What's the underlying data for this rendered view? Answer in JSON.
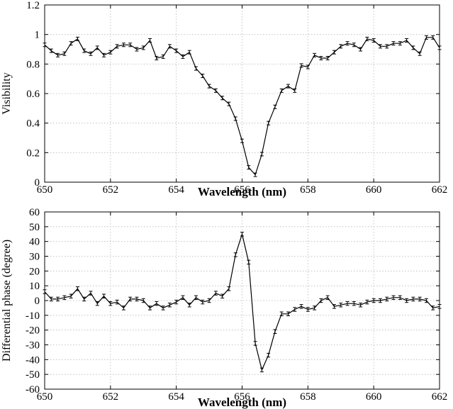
{
  "chart_data": [
    {
      "type": "line",
      "xlabel": "Wavelength (nm)",
      "ylabel": "Visibility",
      "xlim": [
        650,
        662
      ],
      "ylim": [
        0,
        1.2
      ],
      "xticks": [
        "650",
        "652",
        "654",
        "656",
        "658",
        "660",
        "662"
      ],
      "yticks": [
        "0",
        "0.2",
        "0.4",
        "0.6",
        "0.8",
        "1",
        "1.2"
      ],
      "grid": true,
      "x": [
        650.0,
        650.2,
        650.4,
        650.6,
        650.8,
        651.0,
        651.2,
        651.4,
        651.6,
        651.8,
        652.0,
        652.2,
        652.4,
        652.6,
        652.8,
        653.0,
        653.2,
        653.4,
        653.6,
        653.8,
        654.0,
        654.2,
        654.4,
        654.6,
        654.8,
        655.0,
        655.2,
        655.4,
        655.6,
        655.8,
        656.0,
        656.2,
        656.4,
        656.6,
        656.8,
        657.0,
        657.2,
        657.4,
        657.6,
        657.8,
        658.0,
        658.2,
        658.4,
        658.6,
        658.8,
        659.0,
        659.2,
        659.4,
        659.6,
        659.8,
        660.0,
        660.2,
        660.4,
        660.6,
        660.8,
        661.0,
        661.2,
        661.4,
        661.6,
        661.8,
        662.0
      ],
      "y": [
        0.93,
        0.89,
        0.86,
        0.87,
        0.94,
        0.97,
        0.89,
        0.87,
        0.91,
        0.86,
        0.88,
        0.92,
        0.93,
        0.93,
        0.9,
        0.91,
        0.96,
        0.84,
        0.85,
        0.92,
        0.89,
        0.85,
        0.88,
        0.77,
        0.72,
        0.65,
        0.62,
        0.57,
        0.53,
        0.43,
        0.28,
        0.1,
        0.05,
        0.19,
        0.4,
        0.51,
        0.62,
        0.65,
        0.62,
        0.79,
        0.78,
        0.86,
        0.84,
        0.84,
        0.88,
        0.92,
        0.94,
        0.93,
        0.9,
        0.97,
        0.96,
        0.92,
        0.92,
        0.94,
        0.94,
        0.96,
        0.91,
        0.87,
        0.98,
        0.98,
        0.91
      ],
      "err": 0.012
    },
    {
      "type": "line",
      "xlabel": "Wavelength (nm)",
      "ylabel": "Differential phase (degree)",
      "xlim": [
        650,
        662
      ],
      "ylim": [
        -60,
        60
      ],
      "xticks": [
        "650",
        "652",
        "654",
        "656",
        "658",
        "660",
        "662"
      ],
      "yticks": [
        "-60",
        "-50",
        "-40",
        "-30",
        "-20",
        "-10",
        "0",
        "10",
        "20",
        "30",
        "40",
        "50",
        "60"
      ],
      "grid": true,
      "x": [
        650.0,
        650.2,
        650.4,
        650.6,
        650.8,
        651.0,
        651.2,
        651.4,
        651.6,
        651.8,
        652.0,
        652.2,
        652.4,
        652.6,
        652.8,
        653.0,
        653.2,
        653.4,
        653.6,
        653.8,
        654.0,
        654.2,
        654.4,
        654.6,
        654.8,
        655.0,
        655.2,
        655.4,
        655.6,
        655.8,
        656.0,
        656.2,
        656.4,
        656.6,
        656.8,
        657.0,
        657.2,
        657.4,
        657.6,
        657.8,
        658.0,
        658.2,
        658.4,
        658.6,
        658.8,
        659.0,
        659.2,
        659.4,
        659.6,
        659.8,
        660.0,
        660.2,
        660.4,
        660.6,
        660.8,
        661.0,
        661.2,
        661.4,
        661.6,
        661.8,
        662.0
      ],
      "y": [
        6,
        1,
        1,
        2,
        3,
        8,
        1,
        5,
        -2,
        3,
        -2,
        -1,
        -5,
        1,
        1,
        0,
        -5,
        -2,
        -5,
        -3,
        -1,
        2,
        -3,
        2,
        -1,
        0,
        5,
        3,
        8,
        31,
        45,
        26,
        -29,
        -47,
        -37,
        -21,
        -9,
        -9,
        -6,
        -4,
        -6,
        -5,
        0,
        2,
        -4,
        -3,
        -2,
        -2,
        -3,
        -1,
        0,
        0,
        1,
        2,
        2,
        0,
        1,
        1,
        0,
        -5,
        -4
      ],
      "err": 1.3
    }
  ]
}
